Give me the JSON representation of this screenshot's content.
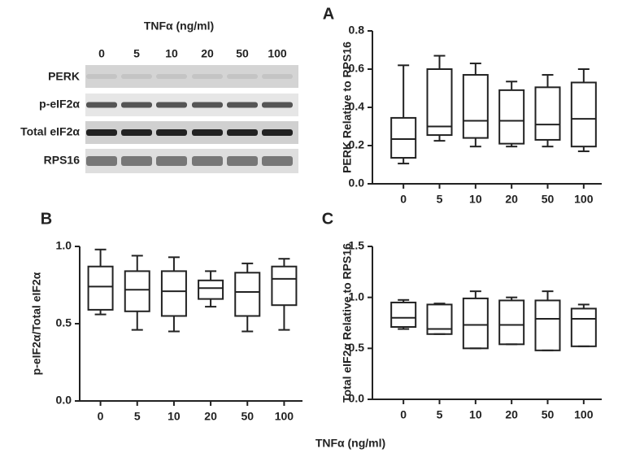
{
  "blot": {
    "title": "TNFα (ng/ml)",
    "lanes": [
      "0",
      "5",
      "10",
      "20",
      "50",
      "100"
    ],
    "rows": [
      "PERK",
      "p-eIF2α",
      "Total eIF2α",
      "RPS16"
    ]
  },
  "x_label": "TNFα (ng/ml)",
  "chart_data": [
    {
      "type": "box",
      "panel": "A",
      "y_label": "PERK Relative to RPS16",
      "categories": [
        "0",
        "5",
        "10",
        "20",
        "50",
        "100"
      ],
      "min": [
        0.106,
        0.225,
        0.195,
        0.195,
        0.195,
        0.17
      ],
      "q1": [
        0.136,
        0.255,
        0.24,
        0.21,
        0.23,
        0.195
      ],
      "median": [
        0.234,
        0.3,
        0.33,
        0.33,
        0.31,
        0.34
      ],
      "q3": [
        0.345,
        0.6,
        0.57,
        0.49,
        0.505,
        0.53
      ],
      "max": [
        0.62,
        0.67,
        0.63,
        0.535,
        0.57,
        0.6
      ],
      "ylim": [
        0,
        0.8
      ],
      "yticks": [
        {
          "value": 0,
          "label": "0.0"
        },
        0.2,
        0.4,
        0.6,
        0.8
      ]
    },
    {
      "type": "box",
      "panel": "B",
      "y_label": "p-eIF2α/Total eIF2α",
      "categories": [
        "0",
        "5",
        "10",
        "20",
        "50",
        "100"
      ],
      "min": [
        0.56,
        0.46,
        0.45,
        0.61,
        0.45,
        0.46
      ],
      "q1": [
        0.59,
        0.58,
        0.55,
        0.66,
        0.55,
        0.62
      ],
      "median": [
        0.74,
        0.72,
        0.71,
        0.73,
        0.705,
        0.79
      ],
      "q3": [
        0.87,
        0.84,
        0.84,
        0.78,
        0.83,
        0.87
      ],
      "max": [
        0.98,
        0.94,
        0.93,
        0.84,
        0.89,
        0.92
      ],
      "ylim": [
        0,
        1
      ],
      "yticks": [
        {
          "value": 0,
          "label": "0.0"
        },
        0.5,
        {
          "value": 1,
          "label": "1.0"
        }
      ]
    },
    {
      "type": "box",
      "panel": "C",
      "y_label": "Total eIF2α Relative to RPS16",
      "categories": [
        "0",
        "5",
        "10",
        "20",
        "50",
        "100"
      ],
      "min": [
        0.69,
        0.64,
        0.5,
        0.54,
        0.48,
        0.52
      ],
      "q1": [
        0.71,
        0.64,
        0.5,
        0.54,
        0.48,
        0.52
      ],
      "median": [
        0.8,
        0.69,
        0.73,
        0.73,
        0.79,
        0.79
      ],
      "q3": [
        0.95,
        0.93,
        0.99,
        0.97,
        0.97,
        0.89
      ],
      "max": [
        0.975,
        0.94,
        1.06,
        1.0,
        1.06,
        0.93
      ],
      "ylim": [
        0,
        1.5
      ],
      "yticks": [
        {
          "value": 0,
          "label": "0.0"
        },
        0.5,
        {
          "value": 1,
          "label": "1.0"
        },
        1.5
      ]
    }
  ]
}
